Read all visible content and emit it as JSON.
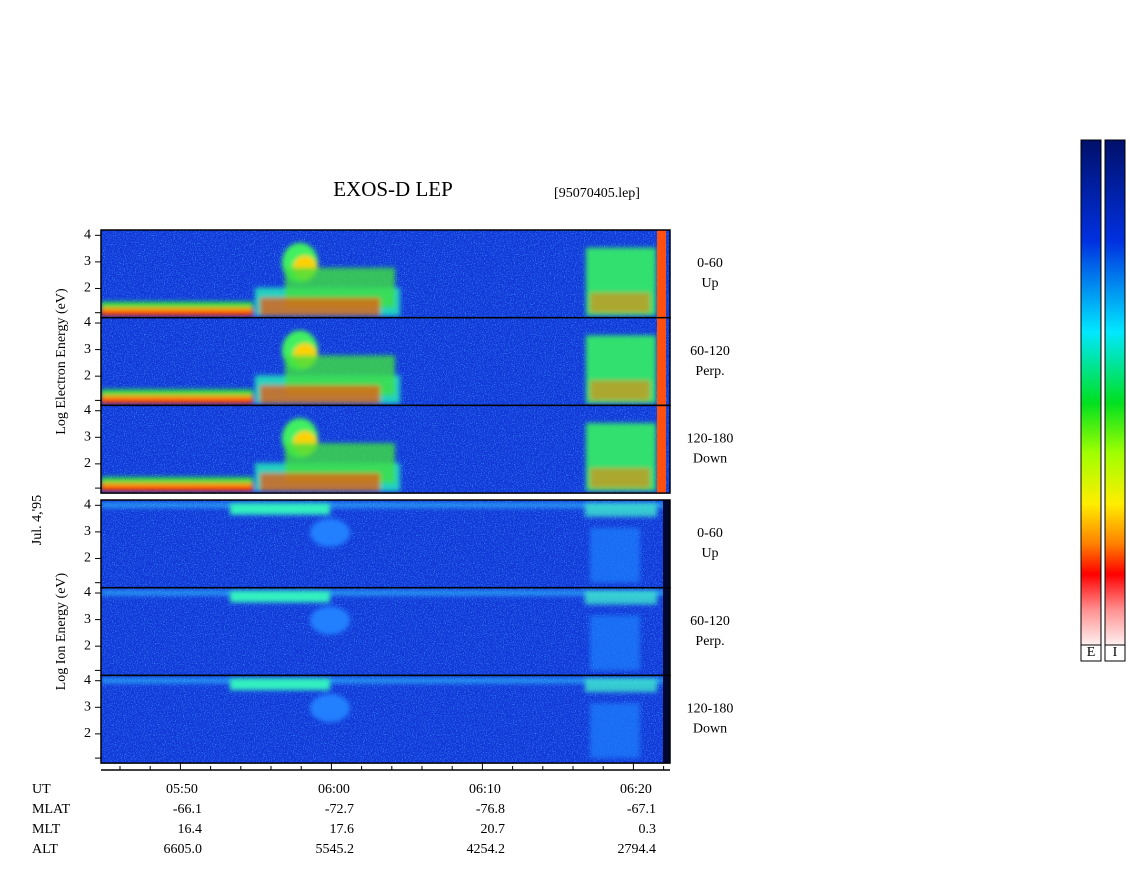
{
  "chart_data": {
    "type": "spectrogram",
    "title": "EXOS-D LEP",
    "file_label": "[95070405.lep]",
    "date_label": "Jul. 4,'95",
    "ylim": [
      0.9,
      4.2
    ],
    "yticks": [
      2,
      3,
      4
    ],
    "groups": [
      {
        "ylabel": "Log  Electron  Energy (eV)",
        "panels": [
          {
            "range": "0-60",
            "direction": "Up"
          },
          {
            "range": "60-120",
            "direction": "Perp."
          },
          {
            "range": "120-180",
            "direction": "Down"
          }
        ]
      },
      {
        "ylabel": "Log  Ion  Energy (eV)",
        "panels": [
          {
            "range": "0-60",
            "direction": "Up"
          },
          {
            "range": "60-120",
            "direction": "Perp."
          },
          {
            "range": "120-180",
            "direction": "Down"
          }
        ]
      }
    ],
    "colorbar_labels": [
      "E",
      "I"
    ],
    "x_rows": [
      {
        "label": "UT",
        "values": [
          "05:50",
          "06:00",
          "06:10",
          "06:20"
        ]
      },
      {
        "label": "MLAT",
        "values": [
          "-66.1",
          "-72.7",
          "-76.8",
          "-67.1"
        ]
      },
      {
        "label": "MLT",
        "values": [
          "16.4",
          "17.6",
          "20.7",
          "0.3"
        ]
      },
      {
        "label": "ALT",
        "values": [
          "6605.0",
          "5545.2",
          "4254.2",
          "2794.4"
        ]
      }
    ]
  }
}
